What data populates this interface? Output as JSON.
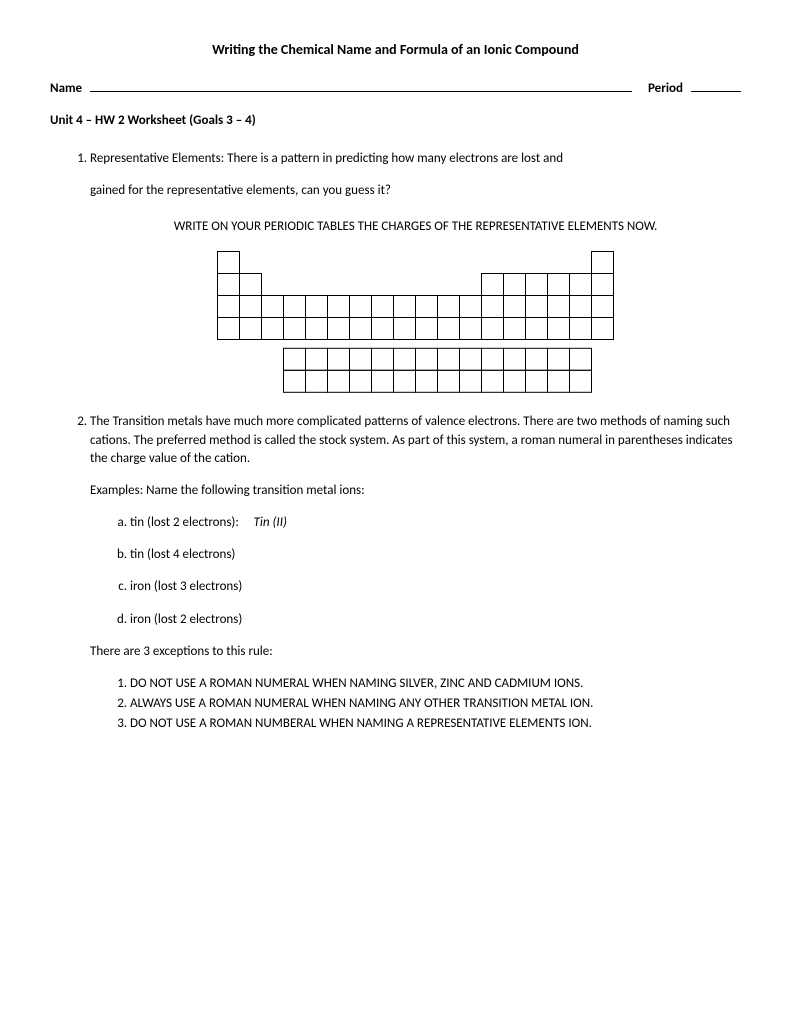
{
  "title": "Writing the Chemical Name and Formula of an Ionic Compound",
  "header": {
    "name_label": "Name",
    "period_label": "Period"
  },
  "unit_line": "Unit 4 – HW 2 Worksheet (Goals 3 – 4)",
  "q1": {
    "line1": "Representative Elements:  There is a pattern in predicting how many electrons are lost and",
    "line2": "gained for the representative elements, can you guess it?",
    "instruction": "WRITE ON YOUR PERIODIC TABLES THE CHARGES OF THE REPRESENTATIVE ELEMENTS NOW."
  },
  "periodic_table": {
    "cell_size": 22,
    "stroke": "#000000",
    "main_rows": 4,
    "main_cols": 18,
    "lan_rows": 2,
    "lan_cols": 14,
    "lan_offset_cols": 3,
    "gap_rows": 0.4,
    "row0_present_cols": [
      0,
      17
    ],
    "row1_missing_cols": [
      2,
      3,
      4,
      5,
      6,
      7,
      8,
      9,
      10,
      11
    ]
  },
  "q2": {
    "body": "The Transition metals have much more complicated patterns of valence electrons.  There are two methods of naming such cations.  The preferred method is called the stock system.  As part of this system, a roman numeral in parentheses indicates the charge value of the cation.",
    "examples_lead": "Examples:  Name the following transition metal ions:",
    "items": {
      "a_label": "tin (lost 2 electrons):",
      "a_answer": "Tin (II)",
      "b": "tin (lost 4 electrons)",
      "c": "iron (lost 3 electrons)",
      "d": "iron (lost 2 electrons)"
    },
    "exceptions_lead": "There are 3 exceptions to this rule:",
    "exceptions": {
      "r1": "DO NOT USE A ROMAN NUMERAL WHEN NAMING SILVER, ZINC AND CADMIUM IONS.",
      "r2": "ALWAYS USE A ROMAN NUMERAL WHEN NAMING ANY OTHER TRANSITION METAL ION.",
      "r3": "DO NOT USE A ROMAN NUMBERAL WHEN NAMING A REPRESENTATIVE ELEMENTS ION."
    }
  }
}
